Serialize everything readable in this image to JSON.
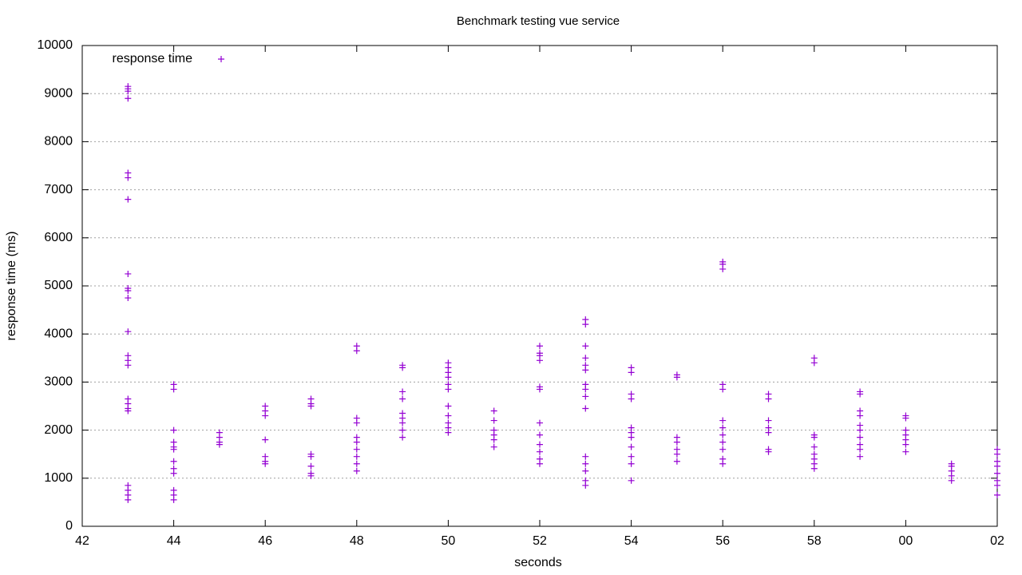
{
  "chart_data": {
    "type": "scatter",
    "title": "Benchmark testing vue service",
    "xlabel": "seconds",
    "ylabel": "response time (ms)",
    "xlim": [
      42,
      62
    ],
    "ylim": [
      0,
      10000
    ],
    "xticks": [
      42,
      44,
      46,
      48,
      50,
      52,
      54,
      56,
      58,
      {
        "value": 60,
        "label": "00"
      },
      {
        "value": 62,
        "label": "02"
      }
    ],
    "yticks": [
      0,
      1000,
      2000,
      3000,
      4000,
      5000,
      6000,
      7000,
      8000,
      9000,
      10000
    ],
    "grid": true,
    "legend": "upper-left",
    "x": [
      43,
      43,
      43,
      43,
      43,
      43,
      43,
      43,
      43,
      43,
      43,
      43,
      43,
      43,
      43,
      43,
      43,
      43,
      43,
      43,
      43,
      43,
      43,
      44,
      44,
      44,
      44,
      44,
      44,
      44,
      44,
      44,
      44,
      44,
      44,
      45,
      45,
      45,
      45,
      46,
      46,
      46,
      46,
      46,
      46,
      46,
      47,
      47,
      47,
      47,
      47,
      47,
      47,
      47,
      48,
      48,
      48,
      48,
      48,
      48,
      48,
      48,
      48,
      48,
      49,
      49,
      49,
      49,
      49,
      49,
      49,
      49,
      49,
      50,
      50,
      50,
      50,
      50,
      50,
      50,
      50,
      50,
      50,
      50,
      51,
      51,
      51,
      51,
      51,
      51,
      52,
      52,
      52,
      52,
      52,
      52,
      52,
      52,
      52,
      52,
      52,
      52,
      53,
      53,
      53,
      53,
      53,
      53,
      53,
      53,
      53,
      53,
      53,
      53,
      53,
      53,
      53,
      54,
      54,
      54,
      54,
      54,
      54,
      54,
      54,
      54,
      54,
      54,
      55,
      55,
      55,
      55,
      55,
      55,
      55,
      56,
      56,
      56,
      56,
      56,
      56,
      56,
      56,
      56,
      56,
      56,
      56,
      57,
      57,
      57,
      57,
      57,
      57,
      57,
      58,
      58,
      58,
      58,
      58,
      58,
      58,
      58,
      58,
      59,
      59,
      59,
      59,
      59,
      59,
      59,
      59,
      59,
      59,
      60,
      60,
      60,
      60,
      60,
      60,
      60,
      61,
      61,
      61,
      61,
      61,
      62,
      62,
      62,
      62,
      62,
      62,
      62,
      62
    ],
    "series": [
      {
        "name": "response time",
        "color": "#9400d3",
        "values": [
          9150,
          9100,
          9050,
          8900,
          7350,
          7250,
          6800,
          5250,
          4950,
          4900,
          4750,
          4050,
          3550,
          3450,
          3350,
          2650,
          2550,
          2450,
          2400,
          850,
          750,
          650,
          550,
          2950,
          2850,
          2000,
          1750,
          1650,
          1600,
          1350,
          1200,
          1100,
          750,
          650,
          550,
          1950,
          1850,
          1750,
          1700,
          2500,
          2400,
          2300,
          1800,
          1450,
          1350,
          1300,
          2650,
          2550,
          2500,
          1500,
          1450,
          1250,
          1100,
          1050,
          3750,
          3650,
          2250,
          2150,
          1850,
          1750,
          1600,
          1450,
          1300,
          1150,
          3350,
          3300,
          2800,
          2650,
          2350,
          2250,
          2150,
          2000,
          1850,
          3400,
          3300,
          3200,
          3100,
          2950,
          2850,
          2500,
          2300,
          2150,
          2050,
          1950,
          2400,
          2200,
          2000,
          1900,
          1800,
          1650,
          3750,
          3600,
          3550,
          3450,
          2900,
          2850,
          2150,
          1900,
          1700,
          1550,
          1400,
          1300,
          4300,
          4200,
          3750,
          3500,
          3350,
          3250,
          2950,
          2850,
          2700,
          2450,
          1450,
          1300,
          1150,
          950,
          850,
          3300,
          3200,
          2750,
          2650,
          2050,
          1950,
          1850,
          1650,
          1450,
          1300,
          950,
          3150,
          3100,
          1850,
          1750,
          1600,
          1500,
          1350,
          5500,
          5450,
          5350,
          2950,
          2850,
          2200,
          2050,
          1900,
          1750,
          1600,
          1400,
          1300,
          2750,
          2650,
          2200,
          2050,
          1950,
          1600,
          1550,
          3500,
          3400,
          1900,
          1850,
          1650,
          1500,
          1400,
          1300,
          1200,
          2800,
          2750,
          2400,
          2300,
          2100,
          2000,
          1850,
          1700,
          1600,
          1450,
          2300,
          2250,
          2000,
          1900,
          1800,
          1700,
          1550,
          1300,
          1250,
          1150,
          1050,
          950,
          1600,
          1500,
          1350,
          1250,
          1100,
          950,
          850,
          650
        ]
      }
    ]
  }
}
